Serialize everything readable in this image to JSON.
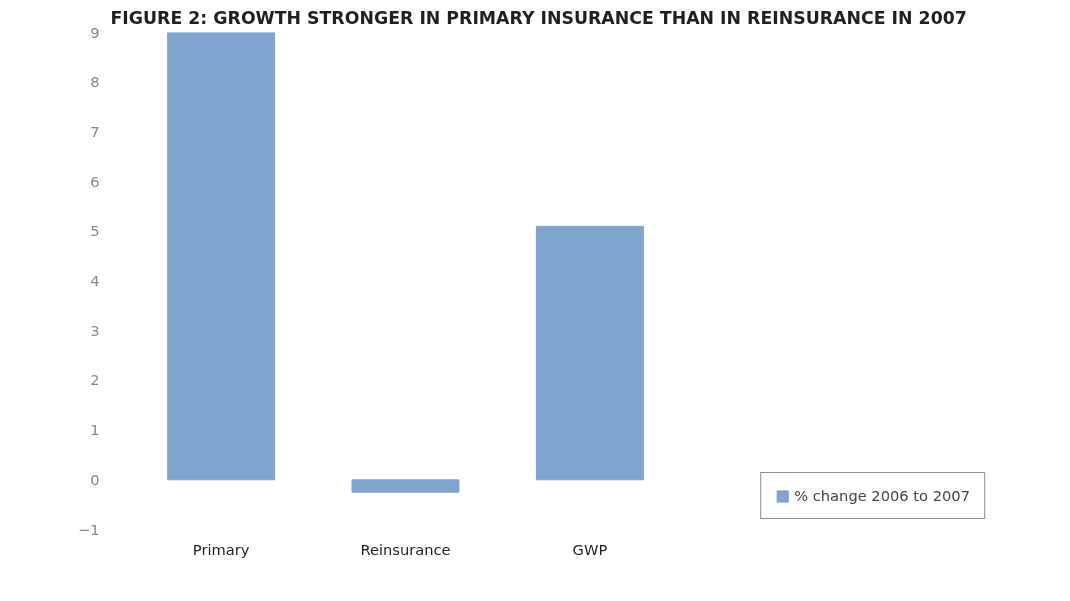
{
  "chart_data": {
    "type": "bar",
    "title": "FIGURE 2: GROWTH STRONGER IN PRIMARY INSURANCE THAN IN REINSURANCE IN 2007",
    "categories": [
      "Primary",
      "Reinsurance",
      "GWP"
    ],
    "series": [
      {
        "name": "% change 2006 to 2007",
        "color": "#7fa5cf",
        "values": [
          9,
          -0.25,
          5.1
        ]
      }
    ],
    "ylim": [
      -1,
      9
    ],
    "yticks": [
      -1,
      0,
      1,
      2,
      3,
      4,
      5,
      6,
      7,
      8,
      9
    ],
    "grid": false,
    "legend": "bottom right"
  }
}
